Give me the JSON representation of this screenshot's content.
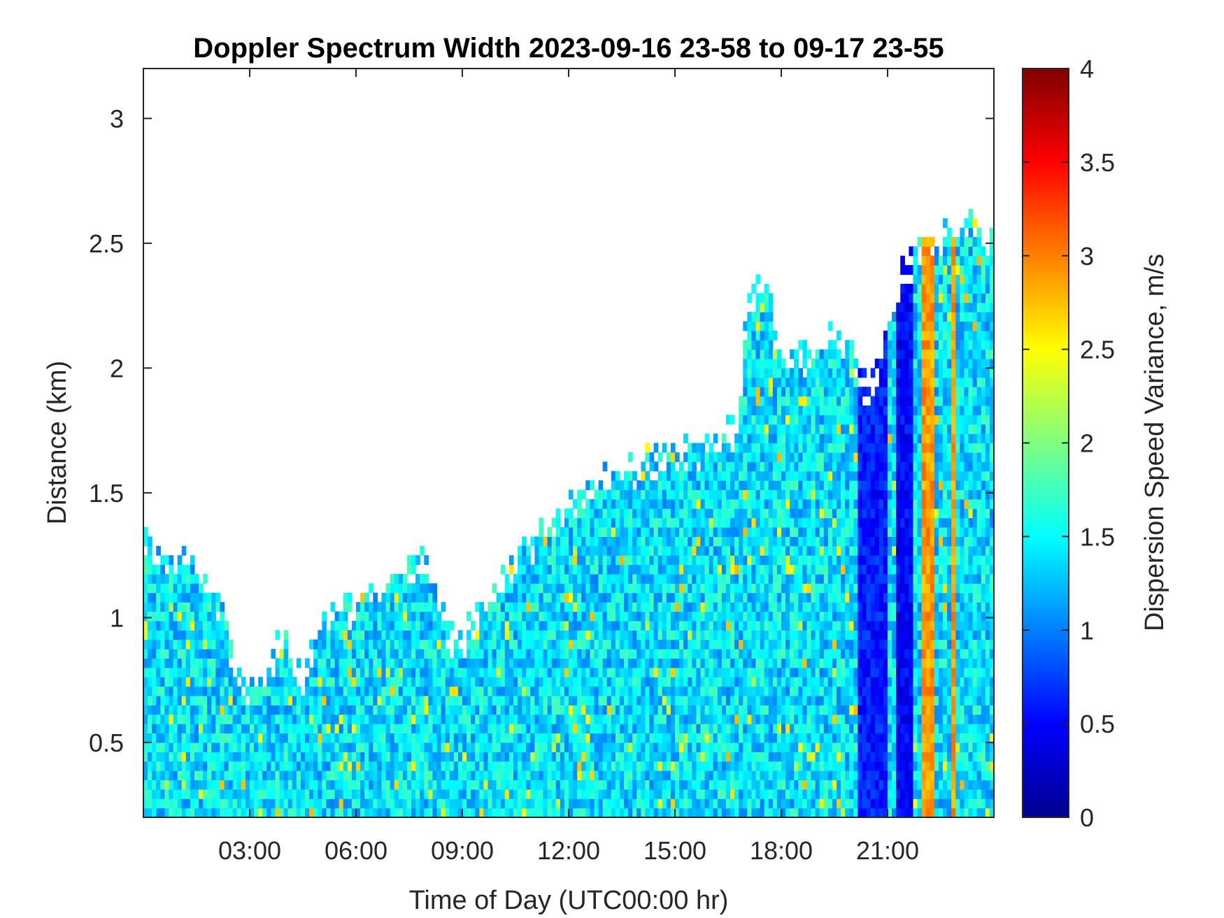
{
  "chart_data": {
    "type": "heatmap",
    "title": "Doppler Spectrum Width 2023-09-16 23-58 to 09-17 23-55",
    "xlabel": "Time of Day (UTC00:00 hr)",
    "ylabel": "Distance (km)",
    "colorbar_label": "Dispersion Speed Variance, m/s",
    "colormap": "jet",
    "x_units": "hours",
    "xlim": [
      0,
      24
    ],
    "ylim": [
      0.2,
      3.2
    ],
    "clim": [
      0,
      4
    ],
    "x_ticks": [
      3,
      6,
      9,
      12,
      15,
      18,
      21
    ],
    "x_tick_labels": [
      "03:00",
      "06:00",
      "09:00",
      "12:00",
      "15:00",
      "18:00",
      "21:00"
    ],
    "y_ticks": [
      0.5,
      1,
      1.5,
      2,
      2.5,
      3
    ],
    "y_tick_labels": [
      "0.5",
      "1",
      "1.5",
      "2",
      "2.5",
      "3"
    ],
    "colorbar_ticks": [
      0,
      0.5,
      1,
      1.5,
      2,
      2.5,
      3,
      3.5,
      4
    ],
    "colorbar_tick_labels": [
      "0",
      "0.5",
      "1",
      "1.5",
      "2",
      "2.5",
      "3",
      "3.5",
      "4"
    ],
    "data_top_boundary": {
      "description": "approximate upper height (km) of valid returns vs time (hr)",
      "x": [
        0,
        0.5,
        1,
        2,
        2.5,
        3,
        3.5,
        4,
        4.5,
        5,
        6,
        7,
        8,
        8.5,
        9,
        10,
        11,
        12,
        13,
        14,
        15,
        16,
        16.8,
        17,
        17.5,
        18,
        19,
        20,
        20.5,
        21,
        21.5,
        22,
        23,
        24
      ],
      "y": [
        1.3,
        1.25,
        1.22,
        1.1,
        0.85,
        0.7,
        0.78,
        0.9,
        0.7,
        1.0,
        1.05,
        1.15,
        1.25,
        0.95,
        0.9,
        1.1,
        1.3,
        1.45,
        1.55,
        1.6,
        1.65,
        1.7,
        1.75,
        2.2,
        2.4,
        2.0,
        2.1,
        2.1,
        1.85,
        2.2,
        2.4,
        2.5,
        2.55,
        2.55
      ]
    },
    "dominant_value": 1.4,
    "features": [
      {
        "name": "low-variance band",
        "x_range": [
          20.2,
          21.0
        ],
        "value": 0.6
      },
      {
        "name": "low-variance band",
        "x_range": [
          21.3,
          21.7
        ],
        "value": 0.5
      },
      {
        "name": "high-variance band",
        "x_range": [
          22.0,
          22.3
        ],
        "value": 2.9
      },
      {
        "name": "high-variance band",
        "x_range": [
          22.8,
          22.95
        ],
        "value": 2.9
      }
    ],
    "grid": false
  },
  "colors": {
    "axis": "#262626",
    "background": "#ffffff"
  }
}
